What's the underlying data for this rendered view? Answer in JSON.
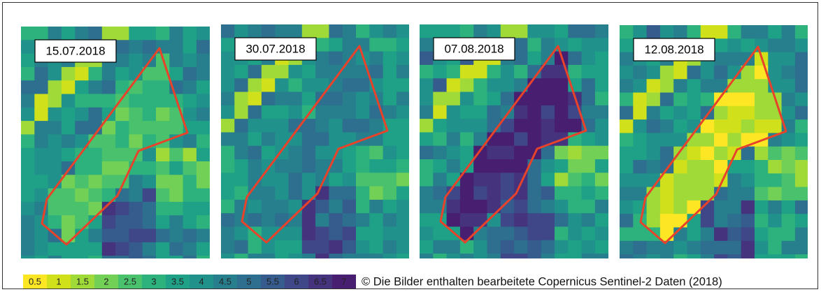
{
  "panels": [
    {
      "date": "15.07.2018"
    },
    {
      "date": "30.07.2018"
    },
    {
      "date": "07.08.2018"
    },
    {
      "date": "12.08.2018"
    }
  ],
  "legend": {
    "labels": [
      "0.5",
      "1",
      "1.5",
      "2",
      "2.5",
      "3",
      "3.5",
      "4",
      "4.5",
      "5",
      "5.5",
      "6",
      "6.5",
      "7"
    ],
    "colors": [
      "#fde725",
      "#d0e11c",
      "#a0da39",
      "#73d056",
      "#4ac16d",
      "#2db27d",
      "#1fa187",
      "#21918c",
      "#277f8e",
      "#2e6e8e",
      "#365c8d",
      "#3f4788",
      "#46337e",
      "#481f70"
    ]
  },
  "caption": "© Die Bilder enthalten bearbeitete Copernicus Sentinel-2 Daten (2018)"
}
